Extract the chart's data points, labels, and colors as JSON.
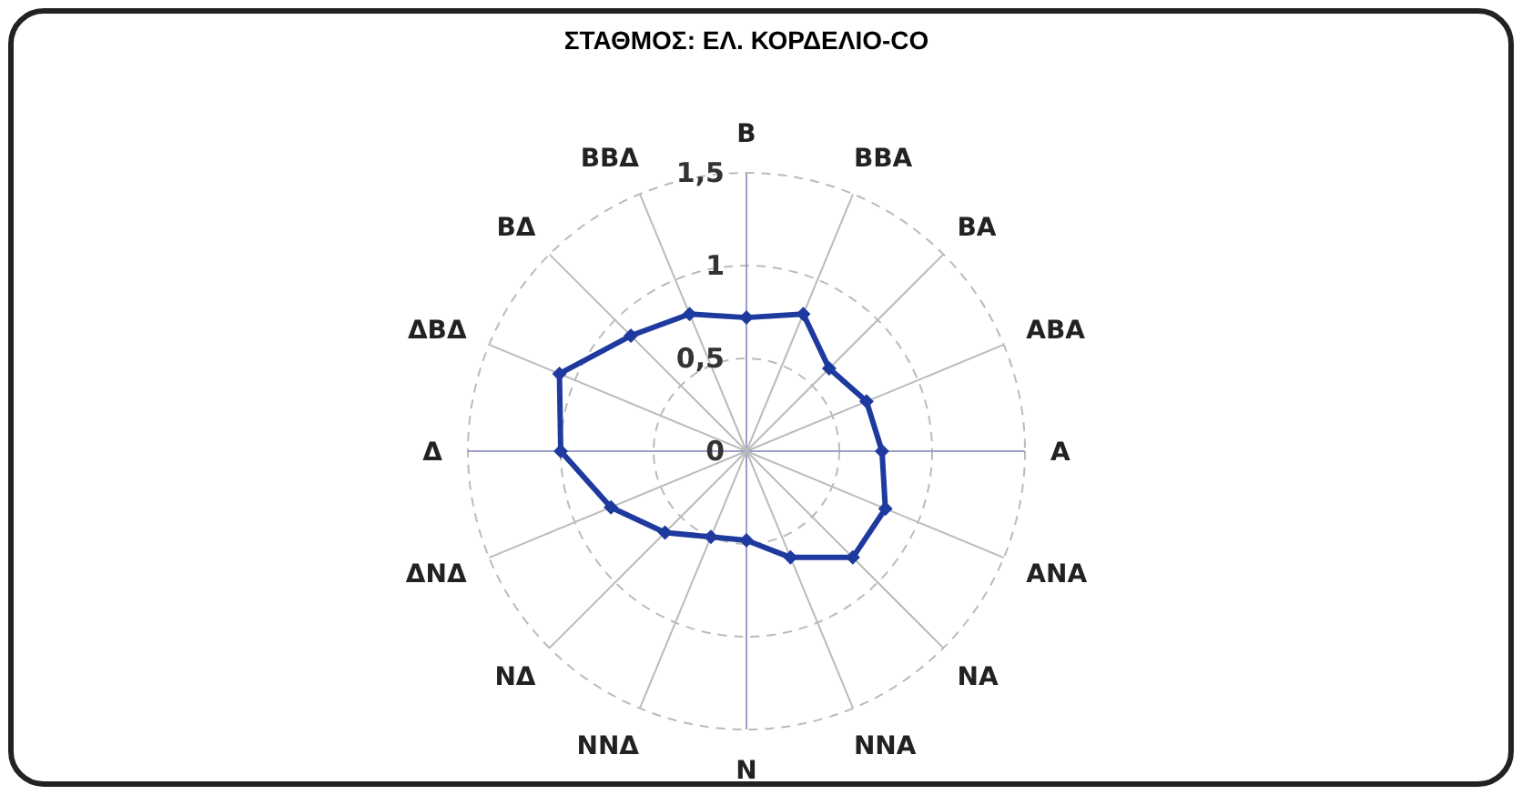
{
  "chart_data": {
    "type": "radar",
    "title": "ΣΤΑΘΜΟΣ: ΕΛ. ΚΟΡΔΕΛΙΟ-CO",
    "categories": [
      "B",
      "BBA",
      "BA",
      "ABA",
      "A",
      "ANA",
      "NA",
      "NNA",
      "N",
      "NNΔ",
      "NΔ",
      "ΔNΔ",
      "Δ",
      "ΔBΔ",
      "BΔ",
      "BBΔ"
    ],
    "series": [
      {
        "color": "#1f3a9e",
        "values": [
          0.72,
          0.8,
          0.63,
          0.7,
          0.73,
          0.81,
          0.81,
          0.62,
          0.48,
          0.5,
          0.62,
          0.79,
          1.0,
          1.09,
          0.88,
          0.8
        ]
      }
    ],
    "ylim": [
      0,
      1.5
    ],
    "yticks": [
      {
        "value": 0,
        "label": "0"
      },
      {
        "value": 0.5,
        "label": "0,5"
      },
      {
        "value": 1,
        "label": "1"
      },
      {
        "value": 1.5,
        "label": "1,5"
      }
    ],
    "grid": true,
    "marker": "diamond",
    "line_style": "solid"
  }
}
